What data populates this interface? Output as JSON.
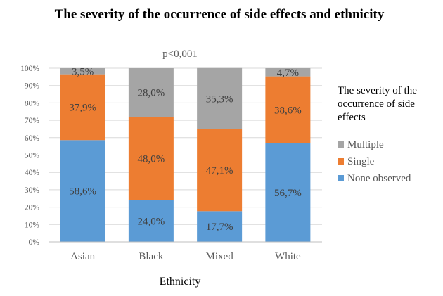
{
  "chart_data": {
    "type": "bar",
    "stacked": true,
    "title": "The severity of the occurrence of side effects and ethnicity",
    "annotation": "p<0,001",
    "xlabel": "Ethnicity",
    "ylabel": "",
    "ylim": [
      0,
      100
    ],
    "yticks": [
      "0%",
      "10%",
      "20%",
      "30%",
      "40%",
      "50%",
      "60%",
      "70%",
      "80%",
      "90%",
      "100%"
    ],
    "categories": [
      "Asian",
      "Black",
      "Mixed",
      "White"
    ],
    "series": [
      {
        "name": "None observed",
        "color": "#5b9bd5",
        "values": [
          58.6,
          24.0,
          17.7,
          56.7
        ],
        "labels": [
          "58,6%",
          "24,0%",
          "17,7%",
          "56,7%"
        ]
      },
      {
        "name": "Single",
        "color": "#ed7d31",
        "values": [
          37.9,
          48.0,
          47.1,
          38.6
        ],
        "labels": [
          "37,9%",
          "48,0%",
          "47,1%",
          "38,6%"
        ]
      },
      {
        "name": "Multiple",
        "color": "#a5a5a5",
        "values": [
          3.5,
          28.0,
          35.3,
          4.7
        ],
        "labels": [
          "3,5%",
          "28,0%",
          "35,3%",
          "4,7%"
        ]
      }
    ],
    "legend": {
      "title_lines": [
        "The severity of the",
        "occurrence of side",
        "effects"
      ],
      "order": [
        "Multiple",
        "Single",
        "None observed"
      ],
      "position": "right"
    }
  }
}
